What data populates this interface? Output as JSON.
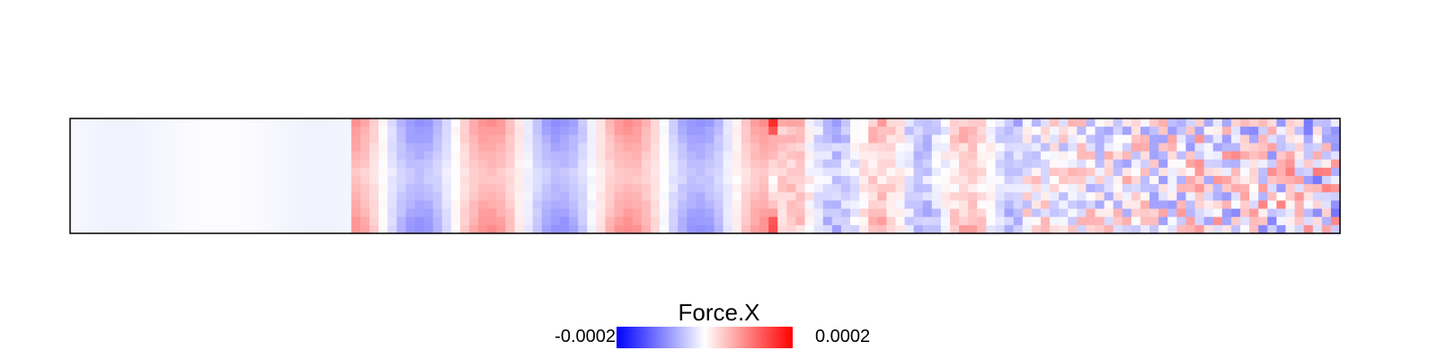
{
  "chart_data": {
    "type": "heatmap",
    "title": "",
    "variable": "Force.X",
    "xlabel": "",
    "ylabel": "",
    "color_scale": {
      "min": -0.0002,
      "max": 0.0002,
      "min_label": "-0.0002",
      "max_label": "0.0002",
      "low_color": "#0000ff",
      "mid_color": "#ffffff",
      "high_color": "#ff0000"
    },
    "legend_placement": "bottom",
    "grid": false,
    "description_of_field": "Force.X values over a long rectangular domain; near zero on the left, large-scale alternating positive/negative bands in the middle, becoming noisy toward the right.",
    "bands": [
      {
        "region": "left",
        "value": -1e-05
      },
      {
        "region": "center-left",
        "value": 8e-05
      },
      {
        "region": "center",
        "value": -8e-05
      },
      {
        "region": "center",
        "value": 8e-05
      },
      {
        "region": "center",
        "value": -8e-05
      },
      {
        "region": "center-right",
        "value": 0.00018
      },
      {
        "region": "right",
        "value": 0
      }
    ]
  }
}
